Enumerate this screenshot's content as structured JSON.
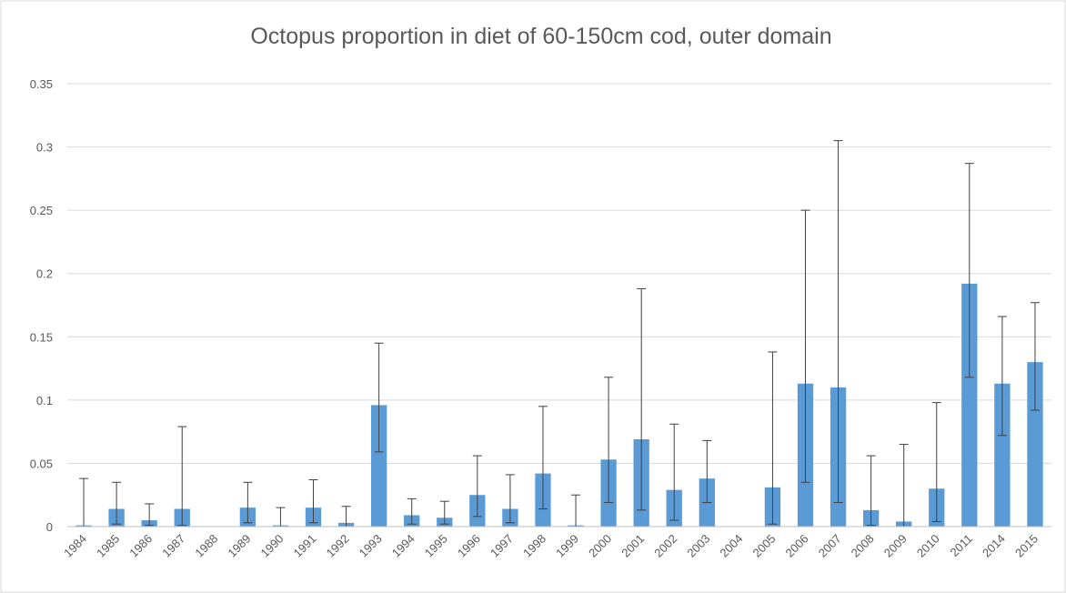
{
  "chart_data": {
    "type": "bar",
    "title": "Octopus proportion in diet of 60-150cm cod, outer domain",
    "categories": [
      "1984",
      "1985",
      "1986",
      "1987",
      "1988",
      "1989",
      "1990",
      "1991",
      "1992",
      "1993",
      "1994",
      "1995",
      "1996",
      "1997",
      "1998",
      "1999",
      "2000",
      "2001",
      "2002",
      "2003",
      "2004",
      "2005",
      "2006",
      "2007",
      "2008",
      "2009",
      "2010",
      "2011",
      "2014",
      "2015"
    ],
    "series": [
      {
        "color": "#5b9bd5",
        "values": [
          0.001,
          0.014,
          0.005,
          0.014,
          0,
          0.015,
          0.001,
          0.015,
          0.003,
          0.096,
          0.009,
          0.007,
          0.025,
          0.014,
          0.042,
          0.001,
          0.053,
          0.069,
          0.029,
          0.038,
          0,
          0.031,
          0.113,
          0.11,
          0.013,
          0.004,
          0.03,
          0.192,
          0.113,
          0.13
        ],
        "error_lower": [
          0,
          0.002,
          0.001,
          0.001,
          null,
          0.003,
          0,
          0.003,
          0,
          0.059,
          0.002,
          0.002,
          0.008,
          0.003,
          0.014,
          0,
          0.019,
          0.013,
          0.005,
          0.019,
          null,
          0.002,
          0.035,
          0.019,
          0.001,
          0,
          0.004,
          0.118,
          0.072,
          0.092
        ],
        "error_upper": [
          0.038,
          0.035,
          0.018,
          0.079,
          null,
          0.035,
          0.015,
          0.037,
          0.016,
          0.145,
          0.022,
          0.02,
          0.056,
          0.041,
          0.095,
          0.025,
          0.118,
          0.188,
          0.081,
          0.068,
          null,
          0.138,
          0.25,
          0.305,
          0.056,
          0.065,
          0.098,
          0.287,
          0.166,
          0.177
        ]
      }
    ],
    "ylim": [
      0,
      0.35
    ],
    "yticks": [
      0,
      0.05,
      0.1,
      0.15,
      0.2,
      0.25,
      0.3,
      0.35
    ],
    "grid": true
  }
}
